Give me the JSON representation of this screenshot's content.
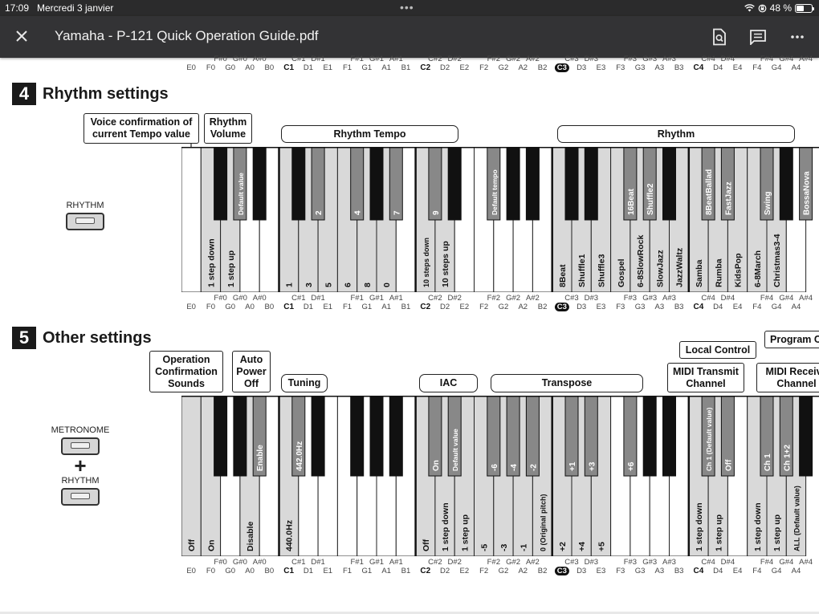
{
  "status_bar": {
    "time": "17:09",
    "date": "Mercredi 3 janvier",
    "battery": "48 %",
    "battery_level": 0.48
  },
  "viewer": {
    "title": "Yamaha - P-121 Quick Operation Guide.pdf",
    "icons": [
      "close-icon",
      "find-in-page-icon",
      "comments-icon",
      "more-icon"
    ]
  },
  "notes": {
    "sharps": [
      "F#0",
      "G#0",
      "A#0",
      "C#1",
      "D#1",
      "F#1",
      "G#1",
      "A#1",
      "C#2",
      "D#2",
      "F#2",
      "G#2",
      "A#2",
      "C#3",
      "D#3",
      "F#3",
      "G#3",
      "A#3",
      "C#4",
      "D#4",
      "F#4",
      "G#4",
      "A#4"
    ],
    "naturals": [
      "E0",
      "F0",
      "G0",
      "A0",
      "B0",
      "C1",
      "D1",
      "E1",
      "F1",
      "G1",
      "A1",
      "B1",
      "C2",
      "D2",
      "E2",
      "F2",
      "G2",
      "A2",
      "B2",
      "C3",
      "D3",
      "E3",
      "F3",
      "G3",
      "A3",
      "B3",
      "C4",
      "D4",
      "E4",
      "F4",
      "G4",
      "A4"
    ]
  },
  "section4": {
    "number": "4",
    "title": "Rhythm settings",
    "button": "RHYTHM",
    "labels": {
      "voice": "Voice confirmation of\ncurrent Tempo value",
      "volume": "Rhythm\nVolume",
      "tempo": "Rhythm Tempo",
      "rhythm": "Rhythm"
    },
    "black_key_labels": [
      "",
      "Default value",
      "",
      "",
      "2",
      "4",
      "",
      "7",
      "9",
      "",
      "Default tempo",
      "",
      "",
      "",
      "",
      "16Beat",
      "Shuffle2",
      "",
      "8BeatBallad",
      "FastJazz",
      "Swing",
      "",
      "BossaNova",
      "Salsa",
      "ChristmasSwing"
    ],
    "white_key_labels": [
      "",
      "1 step down",
      "1 step up",
      "",
      "",
      "1",
      "3",
      "5",
      "6",
      "8",
      "0",
      "",
      "10 steps down",
      "10 steps up",
      "",
      "",
      "",
      "",
      "",
      "8Beat",
      "Shuffle1",
      "Shuffle3",
      "Gospel",
      "6-8SlowRock",
      "SlowJazz",
      "JazzWaltz",
      "Samba",
      "Rumba",
      "KidsPop",
      "6-8March",
      "Christmas3-4",
      ""
    ]
  },
  "section5": {
    "number": "5",
    "title": "Other settings",
    "buttons": {
      "metronome": "METRONOME",
      "plus": "+",
      "rhythm": "RHYTHM"
    },
    "labels": {
      "operation": "Operation\nConfirmation\nSounds",
      "auto_power": "Auto\nPower\nOff",
      "tuning": "Tuning",
      "iac": "IAC",
      "transpose": "Transpose",
      "midi_transmit": "MIDI Transmit\nChannel",
      "local_control": "Local Control",
      "midi_receive": "MIDI Receive\nChannel",
      "program": "Program Change"
    },
    "black_key_labels": [
      "",
      "",
      "Enable",
      "442.0Hz",
      "",
      "",
      "",
      "",
      "On",
      "Default value",
      "-6",
      "-4",
      "-2",
      "+1",
      "+3",
      "+6",
      "",
      "",
      "Ch 1 (Default value)",
      "Off",
      "Ch 1",
      "Ch 1+2",
      ""
    ],
    "white_key_labels": [
      "Off",
      "On",
      "",
      "Disable",
      "",
      "440.0Hz",
      "",
      "",
      "",
      "",
      "",
      "",
      "Off",
      "1 step down",
      "1 step up",
      "-5",
      "-3",
      "-1",
      "0 (Original pitch)",
      "+2",
      "+4",
      "+5",
      "",
      "",
      "",
      "",
      "1 step down",
      "1 step up",
      "",
      "1 step down",
      "1 step up",
      "ALL (Default value)"
    ]
  }
}
